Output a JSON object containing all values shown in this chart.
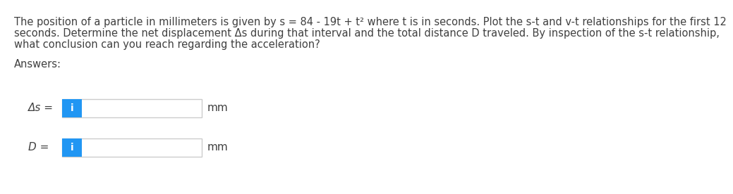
{
  "line1": "The position of a particle in millimeters is given by s = 84 - 19t + t² where t is in seconds. Plot the s-t and v-t relationships for the first 12",
  "line2": "seconds. Determine the net displacement Δs during that interval and the total distance D traveled. By inspection of the s-t relationship,",
  "line3": "what conclusion can you reach regarding the acceleration?",
  "answers_text": "Answers:",
  "label1": "Δs =",
  "label2": "D =",
  "unit": "mm",
  "bg_color": "#ffffff",
  "text_color": "#404040",
  "box_border_color": "#cccccc",
  "box_fill_color": "#ffffff",
  "blue_btn_color": "#2196f3",
  "blue_btn_text": "i",
  "blue_btn_text_color": "#ffffff",
  "font_size_body": 10.5,
  "font_size_answers": 10.5,
  "font_size_labels": 11.0,
  "font_size_btn": 10.0
}
